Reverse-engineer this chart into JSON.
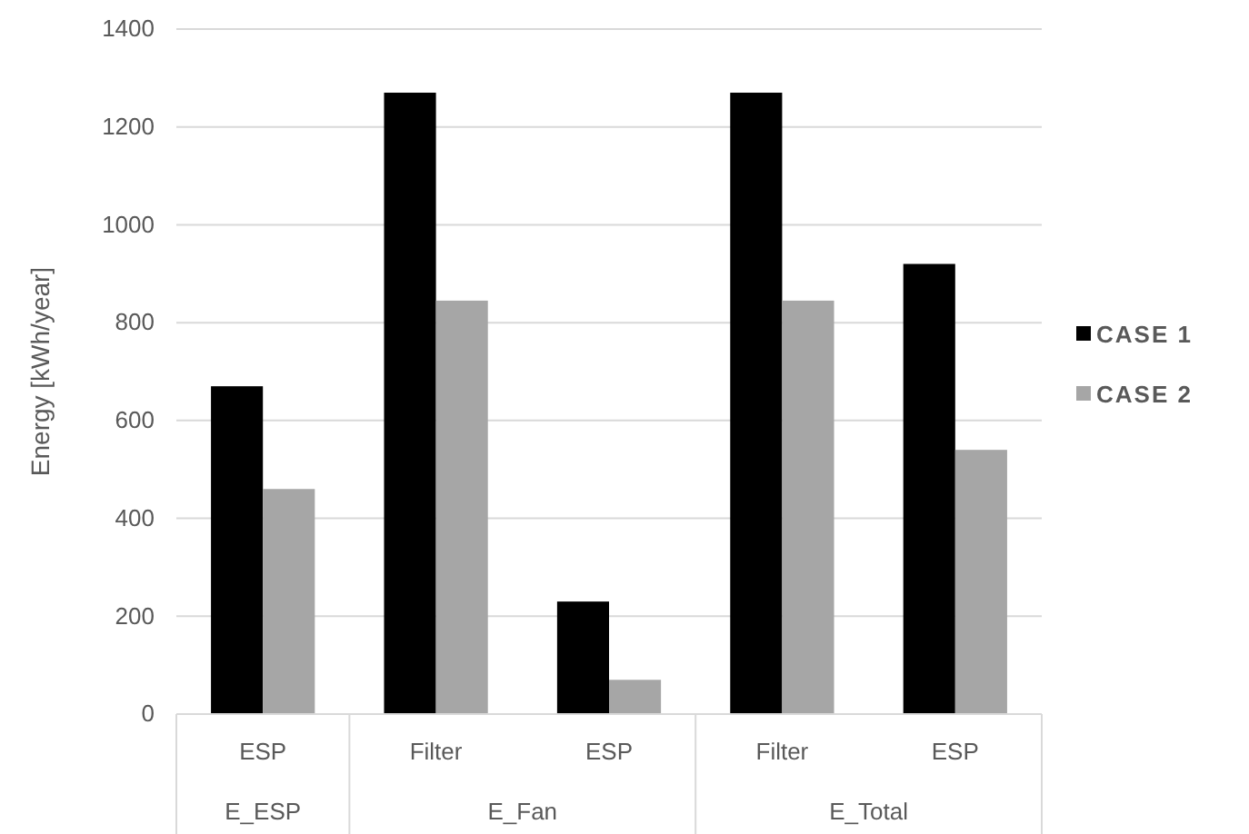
{
  "chart_data": {
    "type": "bar",
    "ylabel": "Energy [kWh/year]",
    "categories": [
      "ESP",
      "Filter",
      "ESP",
      "Filter",
      "ESP"
    ],
    "series": [
      {
        "name": "CASE 1",
        "color": "#000000",
        "values": [
          670,
          1270,
          230,
          1270,
          920
        ]
      },
      {
        "name": "CASE 2",
        "color": "#a6a6a6",
        "values": [
          460,
          845,
          70,
          845,
          540
        ]
      }
    ],
    "annotations": [
      "E_ESP",
      "E_Fan",
      "E_Total"
    ],
    "ylim": [
      0,
      1400
    ],
    "yticks": [
      0,
      200,
      400,
      600,
      800,
      1000,
      1200,
      1400
    ],
    "grid": "y",
    "legend": "right"
  }
}
